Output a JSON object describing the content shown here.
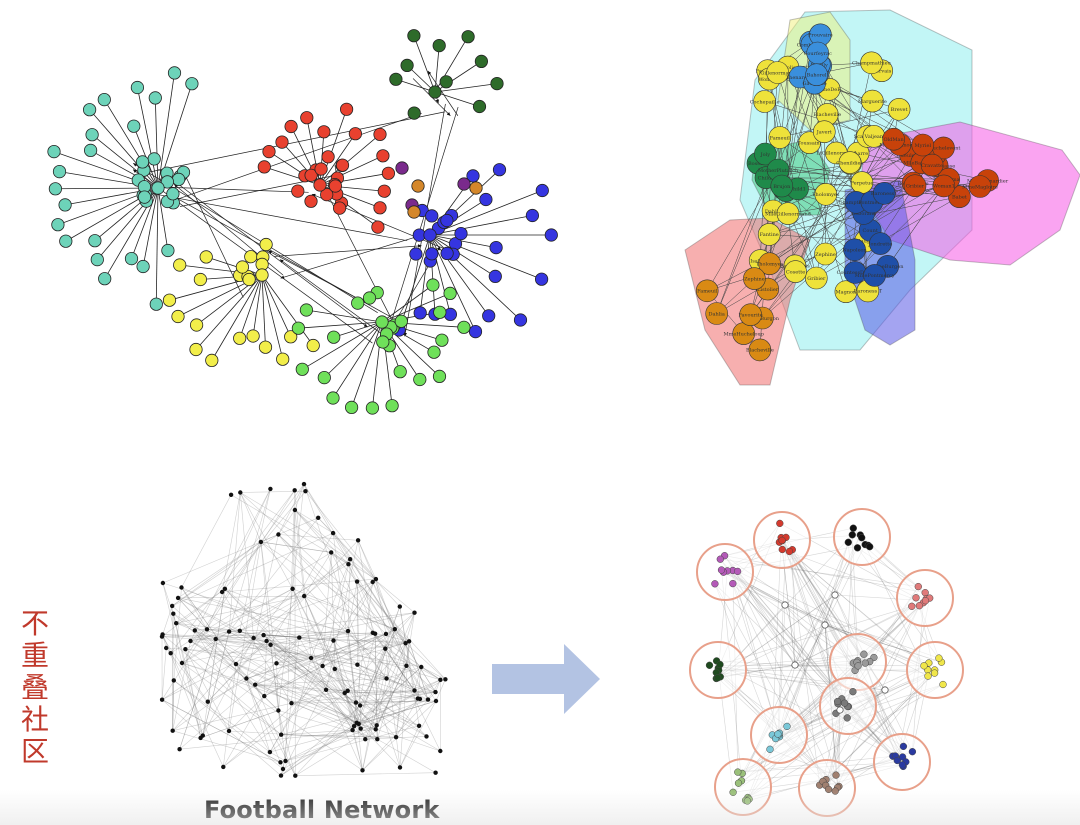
{
  "vertical_label": [
    "不",
    "重",
    "叠",
    "社",
    "区"
  ],
  "caption": "Football Network",
  "colors": {
    "teal": "#6dd3b9",
    "red": "#e8412f",
    "darkgreen": "#2e6b2a",
    "blue": "#3535e0",
    "yellow": "#f2ee4a",
    "lightgreen": "#6fe05a",
    "purple": "#7a2a8c",
    "orange": "#d4872a",
    "vertical_label": "#c0392b",
    "arrow": "#b3c3e3"
  },
  "les_mis_labels": [
    "Listolier",
    "Tholomyes",
    "Fameuil",
    "Blacheville",
    "Favourite",
    "Dahlia",
    "Zephine",
    "Perpetue",
    "Labarre",
    "Magnon",
    "Baroness T",
    "MlleVaubois",
    "Marguerite",
    "Fantine",
    "Simplice",
    "LtGillenormand",
    "MmeDeR",
    "Woman2",
    "Toussaint",
    "MlleGillenormand",
    "Gillenormand",
    "Isabeau",
    "Gervais",
    "Scaufflaire",
    "Gribier",
    "Champmathieu",
    "Brevet",
    "Chenildieu",
    "Cochepaille",
    "Judge",
    "Bamatabois",
    "Valjean",
    "Javert",
    "Cosette",
    "Marius",
    "Thenardier",
    "Eponine",
    "Gavroche",
    "Enjolras",
    "Combeferre",
    "Prouvaire",
    "Feuilly",
    "Courfeyrac",
    "Bahorel",
    "Bossuet",
    "Joly",
    "Grantaire",
    "Mabeuf",
    "Child1",
    "Child2",
    "MotherPlutarch",
    "Brujon",
    "Montparnasse",
    "Claquesous",
    "Babet",
    "Gueulemer",
    "Anzelma",
    "MmeThenardier",
    "Boulatruelle",
    "Woman1",
    "Fauchelevent",
    "MotherInnocent",
    "Gribier",
    "MmeMagloire",
    "MlleBaptistine",
    "Myriel",
    "OldMan",
    "Cravatte",
    "Napoleon",
    "Count",
    "CountessDeLo",
    "Geborand",
    "Champtercier",
    "Pontmercy",
    "Jondrette",
    "MmeBurgon",
    "MmePontmercy",
    "BaronessT",
    "MmeHucheloup",
    "Mme.Burgon"
  ]
}
